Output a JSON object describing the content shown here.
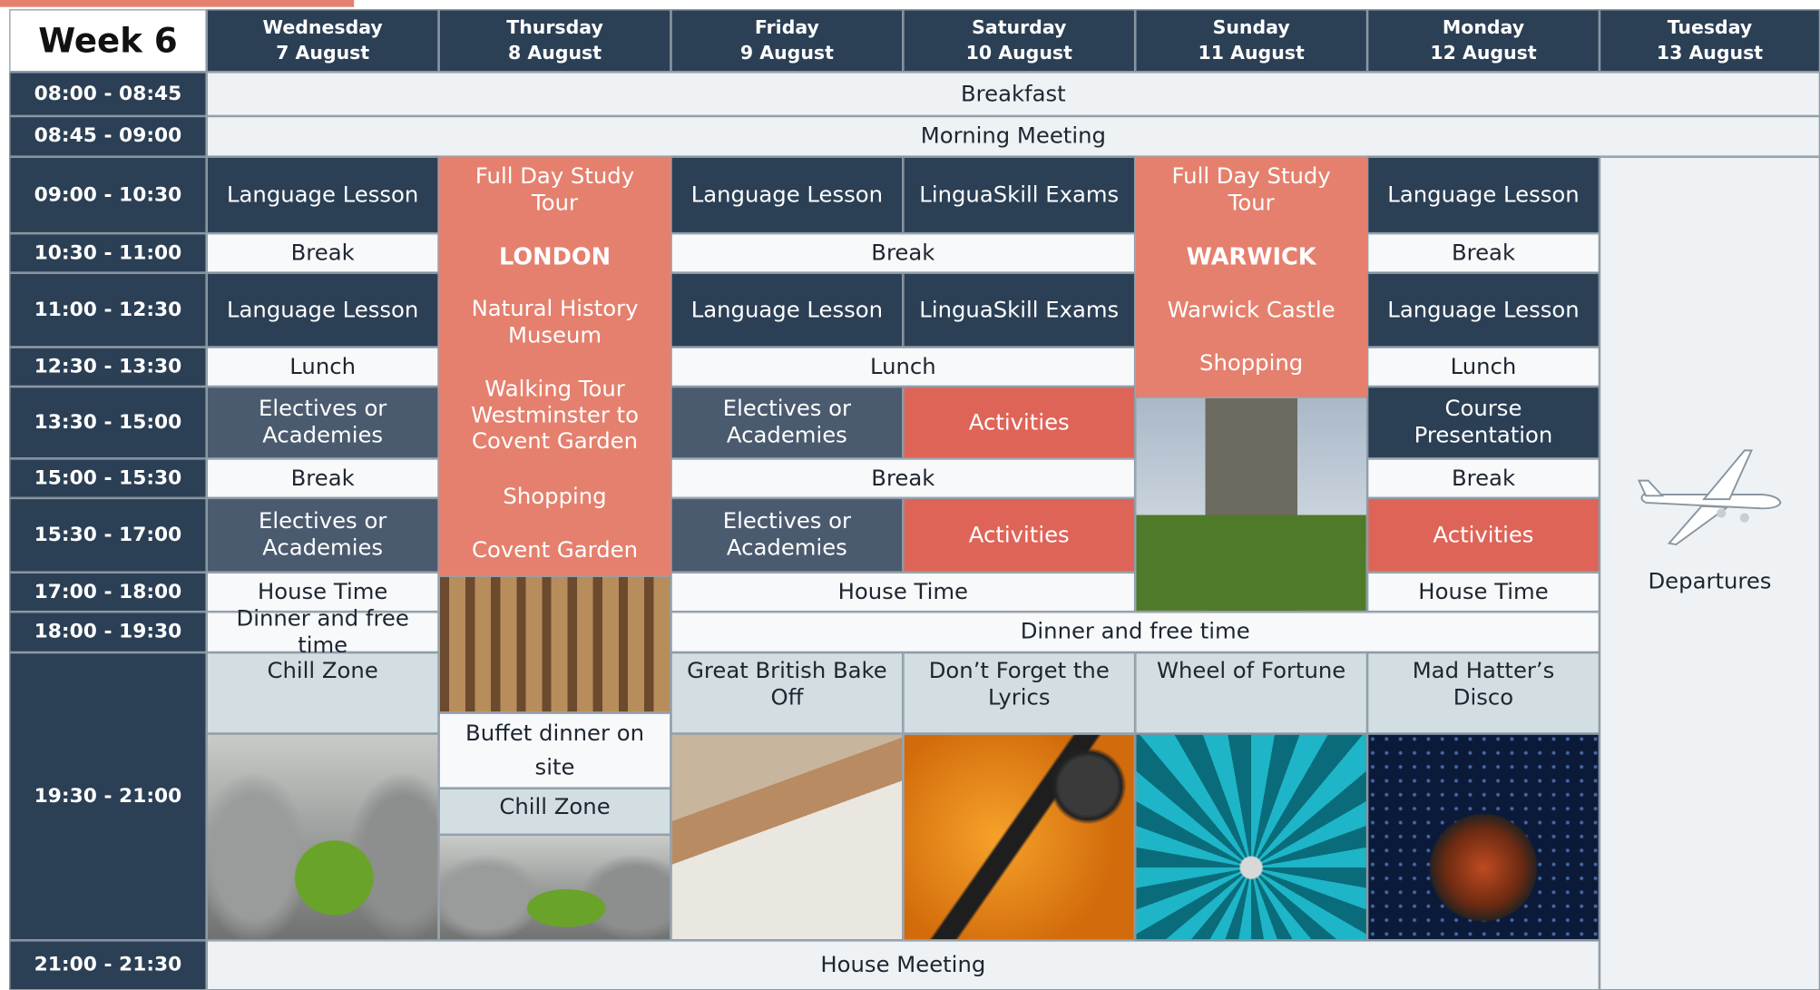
{
  "header": {
    "week": "Week 6",
    "days": [
      {
        "weekday": "Wednesday",
        "date": "7 August"
      },
      {
        "weekday": "Thursday",
        "date": "8 August"
      },
      {
        "weekday": "Friday",
        "date": "9 August"
      },
      {
        "weekday": "Saturday",
        "date": "10 August"
      },
      {
        "weekday": "Sunday",
        "date": "11 August"
      },
      {
        "weekday": "Monday",
        "date": "12 August"
      },
      {
        "weekday": "Tuesday",
        "date": "13 August"
      }
    ]
  },
  "times": [
    "08:00 - 08:45",
    "08:45 - 09:00",
    "09:00 - 10:30",
    "10:30 - 11:00",
    "11:00 - 12:30",
    "12:30 - 13:30",
    "13:30 - 15:00",
    "15:00 - 15:30",
    "15:30 - 17:00",
    "17:00 - 18:00",
    "18:00 - 19:30",
    "19:30 - 21:00",
    "21:00 - 21:30"
  ],
  "all_days": {
    "breakfast": "Breakfast",
    "morning_meeting": "Morning Meeting",
    "house_meeting": "House Meeting"
  },
  "wednesday": [
    "Language Lesson",
    "Break",
    "Language Lesson",
    "Lunch",
    "Electives or Academies",
    "Break",
    "Electives or Academies",
    "House Time",
    "Dinner and free time",
    "Chill Zone"
  ],
  "thursday": {
    "tour": "Full Day Study Tour",
    "city": "LONDON",
    "stops": [
      "Natural History Museum",
      "Walking Tour Westminster to Covent Garden",
      "Shopping",
      "Covent Garden"
    ],
    "dinner": "Buffet dinner on site",
    "evening": "Chill Zone"
  },
  "friday_saturday": {
    "break_morning": "Break",
    "lunch": "Lunch",
    "break_afternoon": "Break",
    "house_time": "House Time"
  },
  "friday": [
    "Language Lesson",
    "Language Lesson",
    "Electives or Academies",
    "Electives or Academies",
    "Great British Bake Off"
  ],
  "saturday": [
    "LinguaSkill Exams",
    "LinguaSkill Exams",
    "Activities",
    "Activities",
    "Don’t Forget the Lyrics"
  ],
  "friday_to_monday": {
    "dinner": "Dinner and free time"
  },
  "sunday": {
    "tour": "Full Day Study Tour",
    "city": "WARWICK",
    "stops": [
      "Warwick Castle",
      "Shopping"
    ],
    "evening": "Wheel of Fortune"
  },
  "monday": [
    "Language Lesson",
    "Break",
    "Language Lesson",
    "Lunch",
    "Course Presentation",
    "Break",
    "Activities",
    "House Time",
    "Mad Hatter’s Disco"
  ],
  "tuesday": {
    "note": "Departures"
  }
}
